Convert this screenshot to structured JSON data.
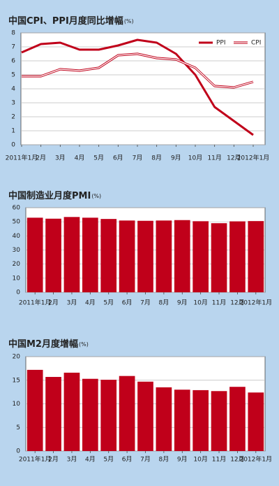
{
  "chart_data": [
    {
      "type": "line",
      "title": "中国CPI、PPI月度同比增幅",
      "unit": "(%)",
      "categories": [
        "2011年1月",
        "2月",
        "3月",
        "4月",
        "5月",
        "6月",
        "7月",
        "8月",
        "9月",
        "10月",
        "11月",
        "12月",
        "2012年1月"
      ],
      "series": [
        {
          "name": "PPI",
          "color": "#c0001a",
          "values": [
            6.6,
            7.2,
            7.3,
            6.8,
            6.8,
            7.1,
            7.5,
            7.3,
            6.5,
            5.0,
            2.7,
            1.7,
            0.7
          ]
        },
        {
          "name": "CPI",
          "color": "#c0001a",
          "values": [
            4.9,
            4.9,
            5.4,
            5.3,
            5.5,
            6.4,
            6.5,
            6.2,
            6.1,
            5.5,
            4.2,
            4.1,
            4.5
          ]
        }
      ],
      "ylim": [
        0,
        8
      ],
      "yticks": [
        0,
        1,
        2,
        3,
        4,
        5,
        6,
        7,
        8
      ],
      "grid": true,
      "legend": "upper right"
    },
    {
      "type": "bar",
      "title": "中国制造业月度PMI",
      "unit": "(%)",
      "categories": [
        "2011年1月",
        "2月",
        "3月",
        "4月",
        "5月",
        "6月",
        "7月",
        "8月",
        "9月",
        "10月",
        "11月",
        "12月",
        "2012年1月"
      ],
      "values": [
        52.9,
        52.2,
        53.4,
        52.9,
        52.0,
        50.9,
        50.7,
        50.9,
        51.2,
        50.4,
        49.0,
        50.3,
        50.5
      ],
      "color": "#c0001a",
      "ylim": [
        0,
        60
      ],
      "yticks": [
        0,
        10,
        20,
        30,
        40,
        50,
        60
      ],
      "grid": true
    },
    {
      "type": "bar",
      "title": "中国M2月度增幅",
      "unit": "(%)",
      "categories": [
        "2011年1月",
        "2月",
        "3月",
        "4月",
        "5月",
        "6月",
        "7月",
        "8月",
        "9月",
        "10月",
        "11月",
        "12月",
        "2012年1月"
      ],
      "values": [
        17.2,
        15.7,
        16.6,
        15.3,
        15.1,
        15.9,
        14.7,
        13.5,
        13.0,
        12.9,
        12.7,
        13.6,
        12.4
      ],
      "color": "#c0001a",
      "ylim": [
        0,
        20
      ],
      "yticks": [
        0,
        5,
        10,
        15,
        20
      ],
      "grid": true
    }
  ]
}
